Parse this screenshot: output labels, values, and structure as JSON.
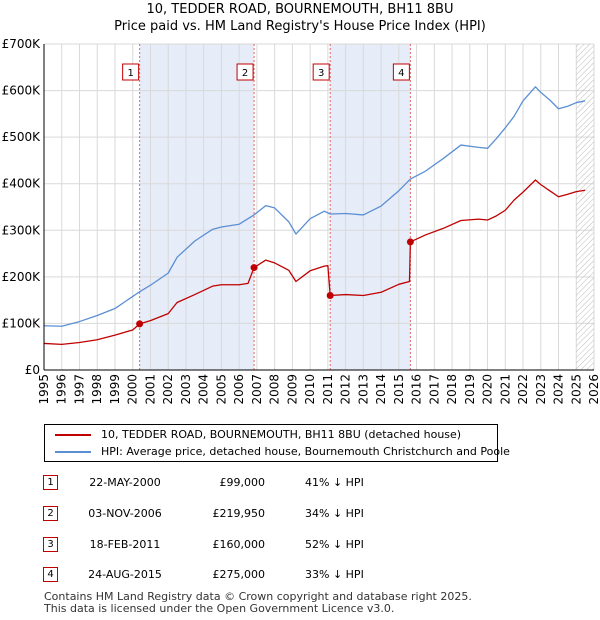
{
  "title": "10, TEDDER ROAD, BOURNEMOUTH, BH11 8BU",
  "subtitle": "Price paid vs. HM Land Registry's House Price Index (HPI)",
  "colors": {
    "property": "#c00000",
    "hpi": "#5b8fd4",
    "shade": "#e6ecf8",
    "grid": "#d9d9d9",
    "marker_border": "#c00000"
  },
  "chart_data": {
    "type": "line",
    "title": "10, TEDDER ROAD, BOURNEMOUTH, BH11 8BU",
    "subtitle": "Price paid vs. HM Land Registry's House Price Index (HPI)",
    "xlabel": "",
    "ylabel": "",
    "xlim": [
      1995,
      2026
    ],
    "ylim": [
      0,
      700000
    ],
    "y_ticks": [
      0,
      100000,
      200000,
      300000,
      400000,
      500000,
      600000,
      700000
    ],
    "y_tick_labels": [
      "£0",
      "£100K",
      "£200K",
      "£300K",
      "£400K",
      "£500K",
      "£600K",
      "£700K"
    ],
    "x_ticks": [
      1995,
      1996,
      1997,
      1998,
      1999,
      2000,
      2001,
      2002,
      2003,
      2004,
      2005,
      2006,
      2007,
      2008,
      2009,
      2010,
      2011,
      2012,
      2013,
      2014,
      2015,
      2016,
      2017,
      2018,
      2019,
      2020,
      2021,
      2022,
      2023,
      2024,
      2025,
      2026
    ],
    "grid": true,
    "shaded_periods": [
      [
        2000.39,
        2006.84
      ],
      [
        2011.13,
        2015.65
      ]
    ],
    "future_hatch_from": 2025.0,
    "series": [
      {
        "name": "10, TEDDER ROAD, BOURNEMOUTH, BH11 8BU (detached house)",
        "color": "#c00000",
        "points": [
          [
            1995.0,
            57000
          ],
          [
            1996.0,
            55000
          ],
          [
            1997.0,
            59000
          ],
          [
            1998.0,
            65000
          ],
          [
            1999.0,
            75000
          ],
          [
            2000.0,
            86000
          ],
          [
            2000.39,
            99000
          ],
          [
            2001.0,
            106000
          ],
          [
            2002.0,
            121000
          ],
          [
            2002.5,
            145000
          ],
          [
            2003.5,
            162000
          ],
          [
            2004.5,
            180000
          ],
          [
            2005.0,
            183000
          ],
          [
            2006.0,
            183000
          ],
          [
            2006.5,
            186000
          ],
          [
            2006.84,
            219950
          ],
          [
            2007.5,
            236000
          ],
          [
            2008.0,
            230000
          ],
          [
            2008.8,
            214000
          ],
          [
            2009.2,
            190000
          ],
          [
            2010.0,
            213000
          ],
          [
            2010.8,
            223000
          ],
          [
            2011.0,
            224000
          ],
          [
            2011.13,
            160000
          ],
          [
            2012.0,
            162000
          ],
          [
            2013.0,
            160000
          ],
          [
            2014.0,
            167000
          ],
          [
            2015.0,
            184000
          ],
          [
            2015.6,
            190000
          ],
          [
            2015.65,
            275000
          ],
          [
            2016.5,
            290000
          ],
          [
            2017.5,
            304000
          ],
          [
            2018.5,
            321000
          ],
          [
            2019.5,
            324000
          ],
          [
            2020.0,
            322000
          ],
          [
            2020.5,
            331000
          ],
          [
            2021.0,
            343000
          ],
          [
            2021.5,
            365000
          ],
          [
            2022.0,
            382000
          ],
          [
            2022.7,
            408000
          ],
          [
            2023.0,
            398000
          ],
          [
            2023.5,
            385000
          ],
          [
            2024.0,
            372000
          ],
          [
            2024.5,
            377000
          ],
          [
            2025.0,
            383000
          ],
          [
            2025.5,
            386000
          ]
        ]
      },
      {
        "name": "HPI: Average price, detached house, Bournemouth Christchurch and Poole",
        "color": "#5b8fd4",
        "points": [
          [
            1995.0,
            95000
          ],
          [
            1996.0,
            94000
          ],
          [
            1997.0,
            104000
          ],
          [
            1998.0,
            117000
          ],
          [
            1999.0,
            132000
          ],
          [
            2000.0,
            158000
          ],
          [
            2000.39,
            168000
          ],
          [
            2001.0,
            182000
          ],
          [
            2002.0,
            208000
          ],
          [
            2002.5,
            242000
          ],
          [
            2003.5,
            277000
          ],
          [
            2004.5,
            302000
          ],
          [
            2005.0,
            307000
          ],
          [
            2006.0,
            313000
          ],
          [
            2006.84,
            333000
          ],
          [
            2007.5,
            353000
          ],
          [
            2008.0,
            348000
          ],
          [
            2008.8,
            318000
          ],
          [
            2009.2,
            292000
          ],
          [
            2010.0,
            325000
          ],
          [
            2010.8,
            341000
          ],
          [
            2011.13,
            335000
          ],
          [
            2012.0,
            336000
          ],
          [
            2013.0,
            333000
          ],
          [
            2014.0,
            352000
          ],
          [
            2015.0,
            385000
          ],
          [
            2015.65,
            410000
          ],
          [
            2016.5,
            427000
          ],
          [
            2017.5,
            454000
          ],
          [
            2018.5,
            483000
          ],
          [
            2019.5,
            478000
          ],
          [
            2020.0,
            476000
          ],
          [
            2020.5,
            497000
          ],
          [
            2021.0,
            520000
          ],
          [
            2021.5,
            545000
          ],
          [
            2022.0,
            578000
          ],
          [
            2022.7,
            608000
          ],
          [
            2023.0,
            596000
          ],
          [
            2023.5,
            580000
          ],
          [
            2024.0,
            561000
          ],
          [
            2024.5,
            566000
          ],
          [
            2025.0,
            574000
          ],
          [
            2025.5,
            578000
          ]
        ]
      }
    ],
    "sales": [
      {
        "num": "1",
        "x": 2000.39,
        "y": 99000
      },
      {
        "num": "2",
        "x": 2006.84,
        "y": 219950
      },
      {
        "num": "3",
        "x": 2011.13,
        "y": 160000
      },
      {
        "num": "4",
        "x": 2015.65,
        "y": 275000
      }
    ]
  },
  "legend": {
    "property_label": "10, TEDDER ROAD, BOURNEMOUTH, BH11 8BU (detached house)",
    "hpi_label": "HPI: Average price, detached house, Bournemouth Christchurch and Poole"
  },
  "sales_table": [
    {
      "num": "1",
      "date": "22-MAY-2000",
      "price": "£99,000",
      "hpi": "41% ↓ HPI"
    },
    {
      "num": "2",
      "date": "03-NOV-2006",
      "price": "£219,950",
      "hpi": "34% ↓ HPI"
    },
    {
      "num": "3",
      "date": "18-FEB-2011",
      "price": "£160,000",
      "hpi": "52% ↓ HPI"
    },
    {
      "num": "4",
      "date": "24-AUG-2015",
      "price": "£275,000",
      "hpi": "33% ↓ HPI"
    }
  ],
  "footer": {
    "line1": "Contains HM Land Registry data © Crown copyright and database right 2025.",
    "line2": "This data is licensed under the Open Government Licence v3.0."
  }
}
